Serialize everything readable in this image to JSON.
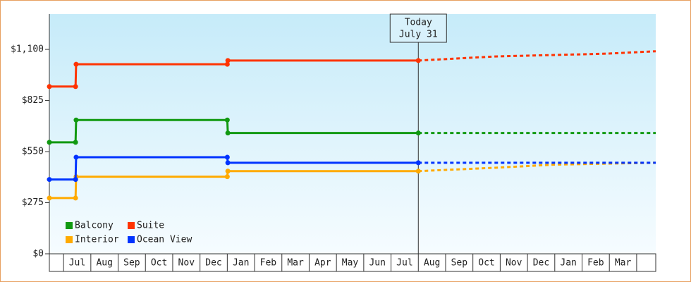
{
  "chart_data": {
    "type": "step-line",
    "xlim": [
      -0.52,
      21.7
    ],
    "xticks": [
      {
        "value": 0.5,
        "label": "Jul"
      },
      {
        "value": 1.5,
        "label": "Aug"
      },
      {
        "value": 2.5,
        "label": "Sep"
      },
      {
        "value": 3.5,
        "label": "Oct"
      },
      {
        "value": 4.5,
        "label": "Nov"
      },
      {
        "value": 5.5,
        "label": "Dec"
      },
      {
        "value": 6.5,
        "label": "Jan"
      },
      {
        "value": 7.5,
        "label": "Feb"
      },
      {
        "value": 8.5,
        "label": "Mar"
      },
      {
        "value": 9.5,
        "label": "Apr"
      },
      {
        "value": 10.5,
        "label": "May"
      },
      {
        "value": 11.5,
        "label": "Jun"
      },
      {
        "value": 12.5,
        "label": "Jul"
      },
      {
        "value": 13.5,
        "label": "Aug"
      },
      {
        "value": 14.5,
        "label": "Sep"
      },
      {
        "value": 15.5,
        "label": "Oct"
      },
      {
        "value": 16.5,
        "label": "Nov"
      },
      {
        "value": 17.5,
        "label": "Dec"
      },
      {
        "value": 18.5,
        "label": "Jan"
      },
      {
        "value": 19.5,
        "label": "Feb"
      },
      {
        "value": 20.5,
        "label": "Mar"
      }
    ],
    "ylim": [
      0,
      1290
    ],
    "yticks": [
      {
        "value": 0,
        "label": "$0"
      },
      {
        "value": 275,
        "label": "$275"
      },
      {
        "value": 550,
        "label": "$550"
      },
      {
        "value": 825,
        "label": "$825"
      },
      {
        "value": 1100,
        "label": "$1,100"
      }
    ],
    "annotation": {
      "x": 13,
      "lines": [
        "Today",
        "July 31"
      ]
    },
    "series": [
      {
        "name": "Balcony",
        "color": "#119911",
        "x": [
          -0.52,
          0.44,
          0.46,
          6.0,
          6.02,
          13
        ],
        "values": [
          600,
          600,
          720,
          720,
          650,
          650
        ],
        "forecast_x": [
          13,
          21.7
        ],
        "forecast_values": [
          650,
          650
        ]
      },
      {
        "name": "Suite",
        "color": "#ff3300",
        "x": [
          -0.52,
          0.44,
          0.46,
          6.0,
          6.02,
          13
        ],
        "values": [
          900,
          900,
          1020,
          1020,
          1040,
          1040
        ],
        "forecast_x": [
          13,
          15.8,
          19.9,
          21.7
        ],
        "forecast_values": [
          1040,
          1062,
          1077,
          1090
        ]
      },
      {
        "name": "Interior",
        "color": "#ffaa00",
        "x": [
          -0.52,
          0.44,
          0.46,
          6.0,
          6.02,
          13
        ],
        "values": [
          300,
          300,
          415,
          415,
          445,
          445
        ],
        "forecast_x": [
          13,
          15.8,
          18,
          21.7
        ],
        "forecast_values": [
          445,
          463,
          480,
          490
        ]
      },
      {
        "name": "Ocean View",
        "color": "#0033ff",
        "x": [
          -0.52,
          0.44,
          0.46,
          6.0,
          6.02,
          13
        ],
        "values": [
          400,
          400,
          520,
          520,
          490,
          490
        ],
        "forecast_x": [
          13,
          21.7
        ],
        "forecast_values": [
          490,
          490
        ]
      }
    ]
  }
}
